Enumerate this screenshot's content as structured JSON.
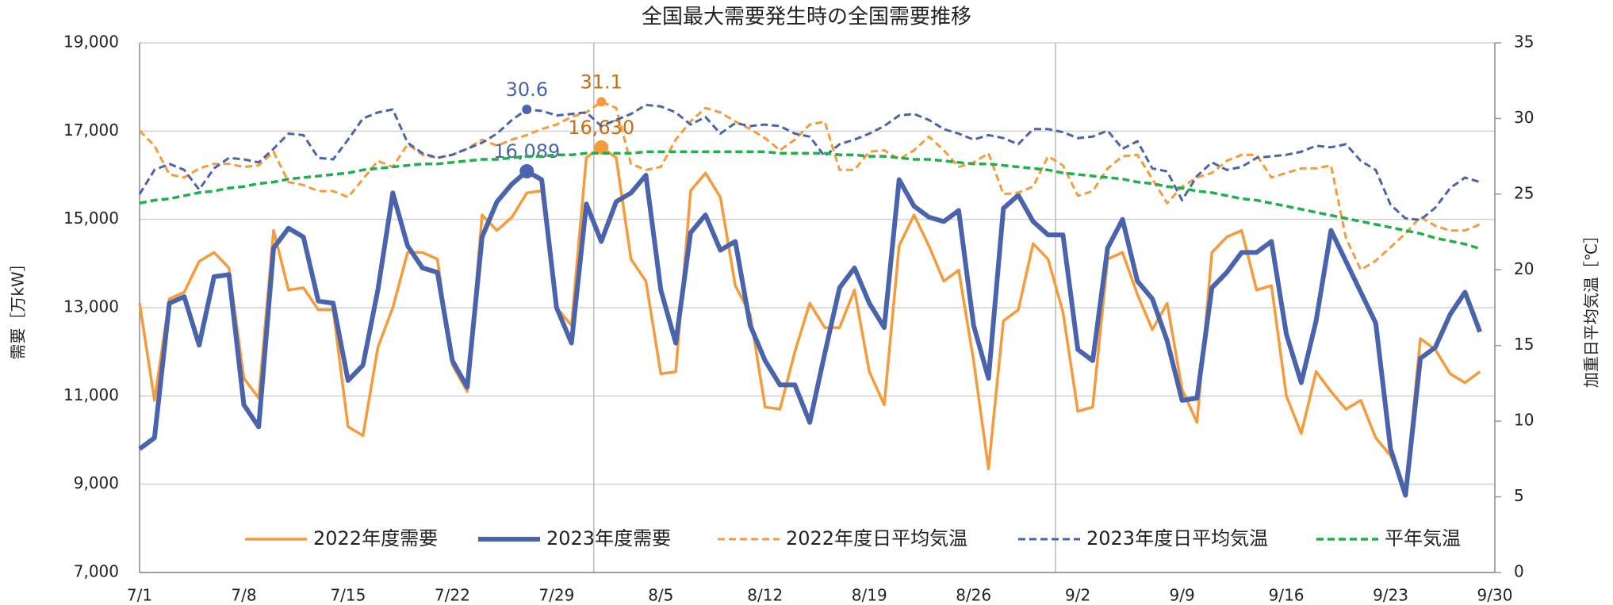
{
  "chart_data": {
    "type": "line",
    "title": "全国最大需要発生時の全国需要推移",
    "y_label": "需要［万kW］",
    "y2_label": "加重日平均気温［℃］",
    "categories": [
      "7/1",
      null,
      null,
      null,
      null,
      null,
      null,
      "7/8",
      null,
      null,
      null,
      null,
      null,
      null,
      "7/15",
      null,
      null,
      null,
      null,
      null,
      null,
      "7/22",
      null,
      null,
      null,
      null,
      null,
      null,
      "7/29",
      null,
      null,
      null,
      null,
      null,
      null,
      "8/5",
      null,
      null,
      null,
      null,
      null,
      null,
      "8/12",
      null,
      null,
      null,
      null,
      null,
      null,
      "8/19",
      null,
      null,
      null,
      null,
      null,
      null,
      "8/26",
      null,
      null,
      null,
      null,
      null,
      null,
      "9/2",
      null,
      null,
      null,
      null,
      null,
      null,
      "9/9",
      null,
      null,
      null,
      null,
      null,
      null,
      "9/16",
      null,
      null,
      null,
      null,
      null,
      null,
      "9/23",
      null,
      null,
      null,
      null,
      null,
      null,
      "9/30"
    ],
    "ylim": [
      7000,
      19000
    ],
    "yticks": [
      {
        "value": 7000,
        "label": "7,000"
      },
      {
        "value": 9000,
        "label": "9,000"
      },
      {
        "value": 11000,
        "label": "11,000"
      },
      {
        "value": 13000,
        "label": "13,000"
      },
      {
        "value": 15000,
        "label": "15,000"
      },
      {
        "value": 17000,
        "label": "17,000"
      },
      {
        "value": 19000,
        "label": "19,000"
      }
    ],
    "y2lim": [
      0,
      35
    ],
    "y2ticks": [
      0,
      5,
      10,
      15,
      20,
      25,
      30,
      35
    ],
    "grid": true,
    "series": [
      {
        "name": "2022年度需要",
        "color": "#f79b3a",
        "dashed": false,
        "width": 3.5,
        "values": [
          13100,
          10900,
          13200,
          13350,
          14050,
          14250,
          13900,
          11400,
          10950,
          14750,
          13400,
          13450,
          12950,
          12950,
          10300,
          10100,
          12100,
          13000,
          14250,
          14250,
          14100,
          11700,
          11100,
          15100,
          14750,
          15050,
          15600,
          15650,
          13000,
          12600,
          16400,
          16630,
          16400,
          14100,
          13600,
          11500,
          11550,
          15650,
          16050,
          15500,
          13500,
          12850,
          10750,
          10700,
          12000,
          13100,
          12550,
          12550,
          13400,
          11550,
          10800,
          14400,
          15100,
          14400,
          13600,
          13850,
          11800,
          9350,
          12700,
          12950,
          14450,
          14100,
          12900,
          10650,
          10750,
          14100,
          14250,
          13300,
          12500,
          13100,
          11150,
          10400,
          14250,
          14600,
          14750,
          13400,
          13500,
          11000,
          10150,
          11550,
          11100,
          10700,
          10900,
          10050,
          9650,
          8850,
          12300,
          12050,
          11500,
          11300,
          11550,
          null
        ],
        "value_labels": {
          "31": "16,630"
        }
      },
      {
        "name": "2023年度需要",
        "color": "#4a63ad",
        "dashed": false,
        "width": 6,
        "values": [
          9800,
          10050,
          13100,
          13250,
          12150,
          13700,
          13750,
          10800,
          10300,
          14350,
          14800,
          14600,
          13150,
          13100,
          11350,
          11700,
          13400,
          15600,
          14400,
          13900,
          13800,
          11800,
          11200,
          14600,
          15400,
          15800,
          16089,
          15900,
          13000,
          12200,
          15350,
          14500,
          15400,
          15600,
          16000,
          13400,
          12200,
          14700,
          15100,
          14300,
          14500,
          12600,
          11800,
          11250,
          11250,
          10400,
          11950,
          13450,
          13900,
          13100,
          12550,
          15900,
          15300,
          15050,
          14950,
          15200,
          12600,
          11400,
          15250,
          15550,
          14950,
          14650,
          14650,
          12050,
          11800,
          14350,
          15000,
          13600,
          13200,
          12250,
          10900,
          10950,
          13450,
          13800,
          14250,
          14250,
          14500,
          12400,
          11300,
          12700,
          14750,
          14050,
          13350,
          12650,
          9800,
          8750,
          11850,
          12100,
          12850,
          13350,
          12450,
          null
        ],
        "value_labels": {
          "26": "16,089"
        }
      },
      {
        "name": "2022年度日平均気温",
        "color": "#f79b3a",
        "dashed": true,
        "width": 3,
        "axis": "y2",
        "values": [
          29.2,
          28.2,
          26.3,
          26.1,
          26.7,
          27.0,
          27.0,
          26.8,
          26.9,
          27.8,
          25.8,
          25.6,
          25.2,
          25.2,
          24.8,
          26.0,
          27.2,
          26.8,
          28.3,
          27.6,
          27.4,
          27.6,
          28.0,
          28.6,
          28.2,
          28.6,
          28.9,
          29.3,
          29.6,
          30.1,
          30.4,
          31.1,
          30.7,
          27.0,
          26.6,
          26.8,
          28.6,
          29.8,
          30.7,
          30.4,
          29.8,
          29.3,
          28.7,
          27.9,
          28.6,
          29.6,
          29.8,
          26.6,
          26.6,
          27.8,
          27.9,
          27.3,
          27.9,
          28.8,
          27.9,
          26.8,
          27.1,
          27.7,
          25.0,
          25.1,
          25.5,
          27.5,
          26.9,
          24.9,
          25.2,
          26.7,
          27.5,
          27.6,
          26.0,
          24.4,
          25.5,
          26.1,
          26.4,
          27.2,
          27.6,
          27.6,
          26.1,
          26.4,
          26.7,
          26.7,
          26.9,
          22.1,
          20.0,
          20.6,
          21.5,
          22.4,
          23.5,
          22.9,
          22.6,
          22.6,
          23.0,
          null
        ],
        "value_labels": {
          "31": "31.1"
        }
      },
      {
        "name": "2023年度日平均気温",
        "color": "#4a63ad",
        "dashed": true,
        "width": 3,
        "axis": "y2",
        "values": [
          25.0,
          26.6,
          27.0,
          26.6,
          25.3,
          26.7,
          27.4,
          27.3,
          27.1,
          28.0,
          29.0,
          28.9,
          27.4,
          27.3,
          28.6,
          30.0,
          30.4,
          30.6,
          28.4,
          27.7,
          27.4,
          27.6,
          28.0,
          28.4,
          29.0,
          29.9,
          30.6,
          30.5,
          30.2,
          30.3,
          30.4,
          29.5,
          29.9,
          30.3,
          30.9,
          30.8,
          30.4,
          29.6,
          30.1,
          29.0,
          29.7,
          29.5,
          29.6,
          29.5,
          29.0,
          28.8,
          27.5,
          28.3,
          28.6,
          29.0,
          29.5,
          30.2,
          30.3,
          29.9,
          29.3,
          29.0,
          28.6,
          28.9,
          28.7,
          28.3,
          29.3,
          29.3,
          29.1,
          28.7,
          28.8,
          29.2,
          28.0,
          28.5,
          26.7,
          26.5,
          24.6,
          26.2,
          27.1,
          26.6,
          26.8,
          27.4,
          27.5,
          27.6,
          27.8,
          28.2,
          28.1,
          28.3,
          27.2,
          26.6,
          24.3,
          23.4,
          23.3,
          24.1,
          25.4,
          26.1,
          25.8,
          null
        ],
        "value_labels": {
          "26": "30.6"
        }
      },
      {
        "name": "平年気温",
        "color": "#1faf4b",
        "dashed": true,
        "width": 3.5,
        "axis": "y2",
        "values": [
          24.4,
          24.6,
          24.7,
          24.9,
          25.1,
          25.2,
          25.4,
          25.5,
          25.7,
          25.8,
          26.0,
          26.1,
          26.2,
          26.3,
          26.4,
          26.6,
          26.7,
          26.8,
          26.9,
          27.0,
          27.0,
          27.1,
          27.2,
          27.3,
          27.3,
          27.4,
          27.5,
          27.5,
          27.6,
          27.6,
          27.7,
          27.7,
          27.7,
          27.7,
          27.8,
          27.8,
          27.8,
          27.8,
          27.8,
          27.8,
          27.8,
          27.8,
          27.8,
          27.7,
          27.7,
          27.7,
          27.7,
          27.6,
          27.6,
          27.5,
          27.5,
          27.4,
          27.3,
          27.3,
          27.2,
          27.1,
          27.0,
          27.0,
          26.9,
          26.8,
          26.7,
          26.6,
          26.4,
          26.3,
          26.2,
          26.1,
          26.0,
          25.8,
          25.7,
          25.5,
          25.4,
          25.2,
          25.1,
          24.9,
          24.7,
          24.6,
          24.4,
          24.2,
          24.0,
          23.8,
          23.6,
          23.4,
          23.2,
          23.0,
          22.8,
          22.6,
          22.4,
          22.1,
          21.9,
          21.7,
          21.4,
          null
        ]
      }
    ]
  }
}
